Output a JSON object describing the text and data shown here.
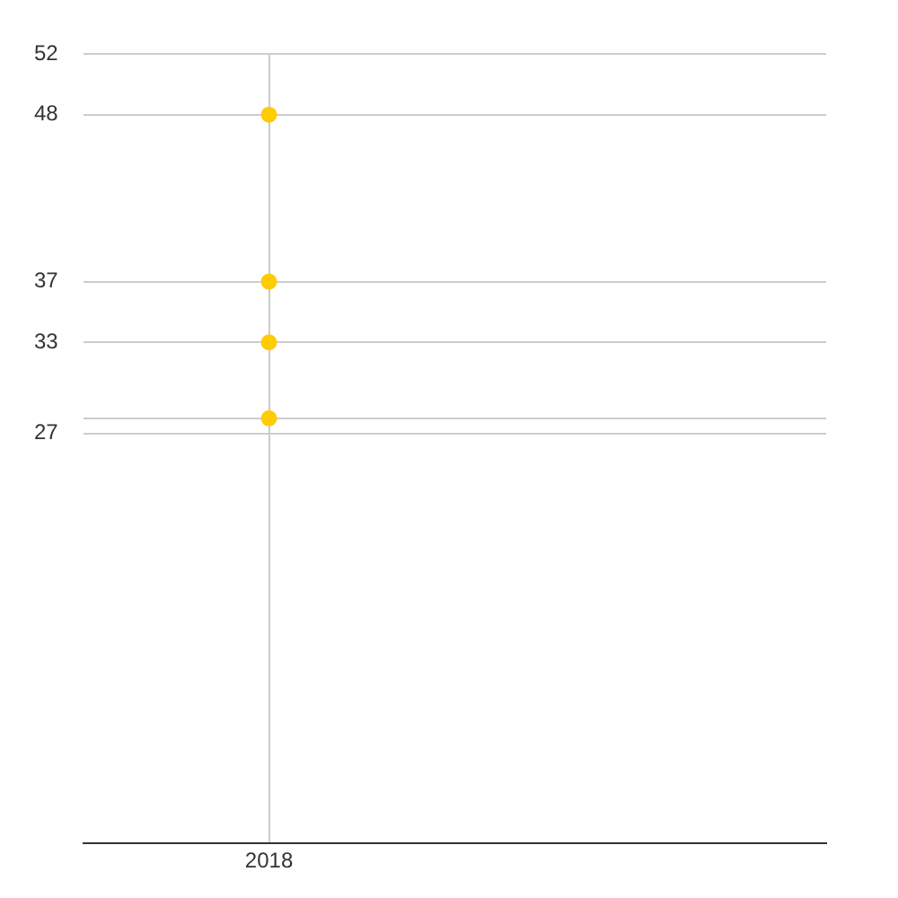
{
  "chart_data": {
    "type": "scatter",
    "categories": [
      "2018",
      null
    ],
    "series": [
      {
        "color": "#ffcc00",
        "values": [
          48,
          null
        ]
      },
      {
        "color": "#ffcc00",
        "values": [
          37,
          null
        ]
      },
      {
        "color": "#ffcc00",
        "values": [
          33,
          null
        ]
      },
      {
        "color": "#ffcc00",
        "values": [
          28,
          null
        ]
      }
    ],
    "ylim": [
      0,
      52
    ],
    "yticks": [
      27,
      {
        "value": 28,
        "label": null
      },
      33,
      37,
      48,
      52
    ],
    "grid": true,
    "legend": false,
    "marker": "circle"
  }
}
